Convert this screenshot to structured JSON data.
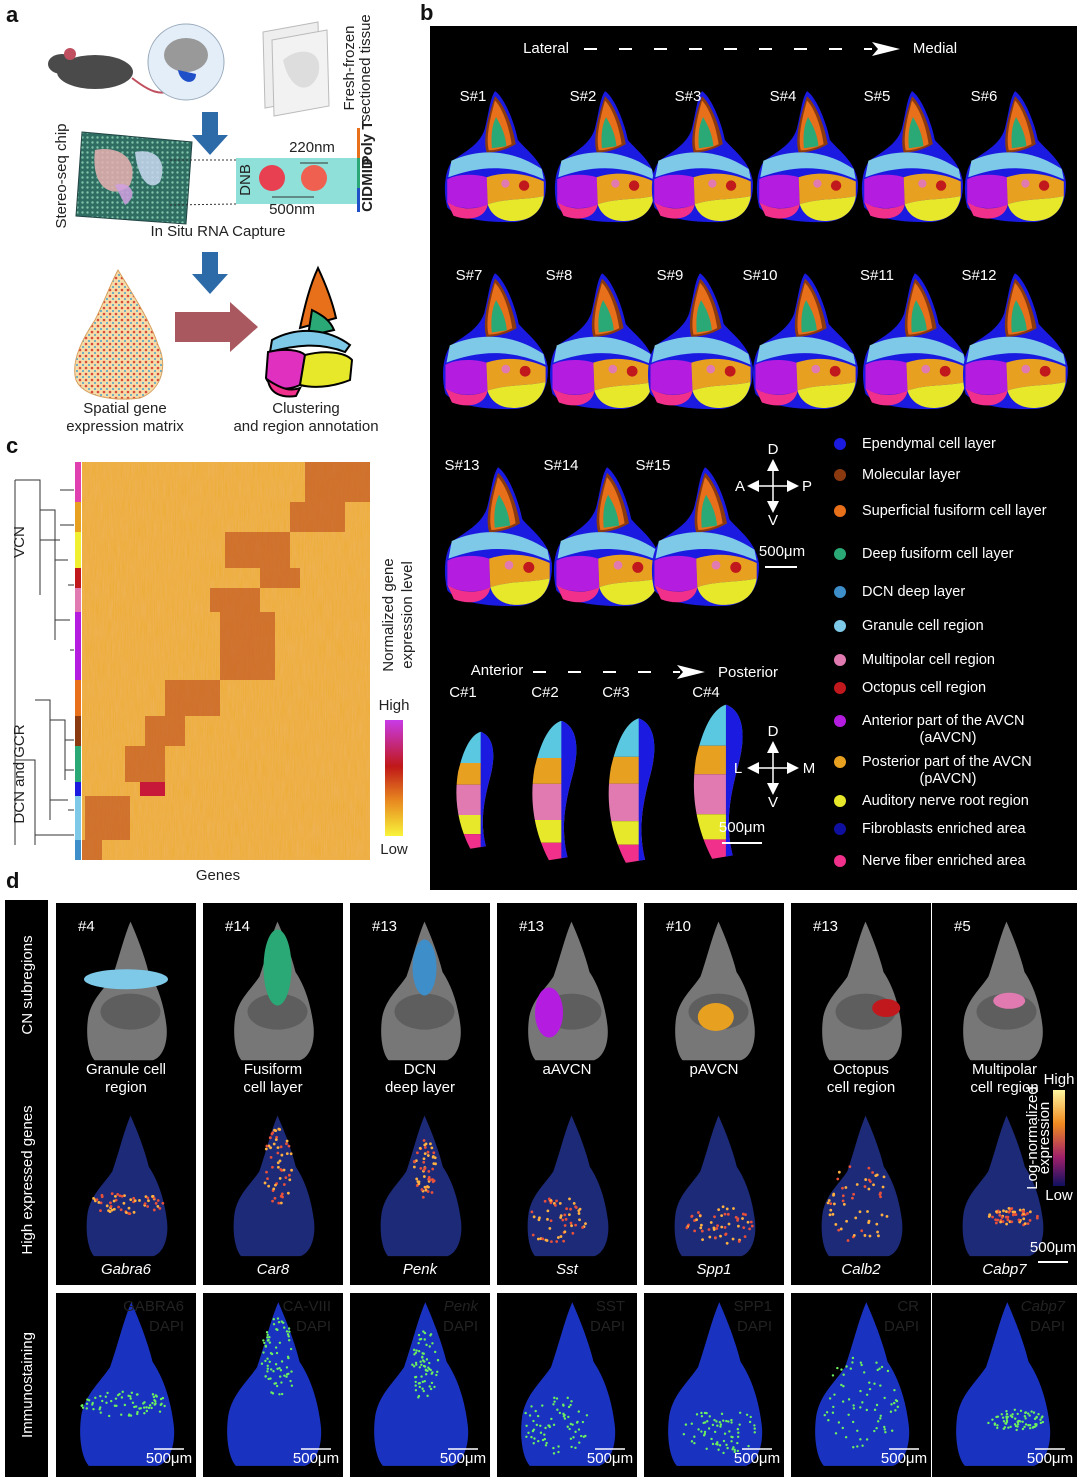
{
  "panel_a": {
    "label": "a",
    "tissue_label": [
      "Fresh-frozen",
      "sectioned tissue"
    ],
    "chip_label": "Stereo-seq chip",
    "dnb_label": "DNB",
    "dnb_size": "220nm",
    "dnb_spacing": "500nm",
    "probe_parts": [
      "Poly T",
      "MID",
      "CID"
    ],
    "capture_step": "In Situ RNA Capture",
    "matrix_label": [
      "Spatial gene",
      "expression matrix"
    ],
    "cluster_label": [
      "Clustering",
      "and region annotation"
    ]
  },
  "panel_b": {
    "label": "b",
    "sagittal_axis": {
      "start": "Lateral",
      "end": "Medial"
    },
    "sagittal_sections": [
      "S#1",
      "S#2",
      "S#3",
      "S#4",
      "S#5",
      "S#6",
      "S#7",
      "S#8",
      "S#9",
      "S#10",
      "S#11",
      "S#12",
      "S#13",
      "S#14",
      "S#15"
    ],
    "sagittal_compass": {
      "up": "D",
      "down": "V",
      "left": "A",
      "right": "P"
    },
    "sagittal_scale": "500μm",
    "coronal_axis": {
      "start": "Anterior",
      "end": "Posterior"
    },
    "coronal_sections": [
      "C#1",
      "C#2",
      "C#3",
      "C#4"
    ],
    "coronal_compass": {
      "up": "D",
      "down": "V",
      "left": "L",
      "right": "M"
    },
    "coronal_scale": "500μm",
    "legend": [
      {
        "lines": [
          "Ependymal cell layer"
        ],
        "color": "#1a1ae0"
      },
      {
        "lines": [
          "Molecular layer"
        ],
        "color": "#8b3a10"
      },
      {
        "lines": [
          "Superficial fusiform cell layer"
        ],
        "color": "#e8701a"
      },
      {
        "lines": [
          "Deep fusiform cell  layer"
        ],
        "color": "#2aa875"
      },
      {
        "lines": [
          "DCN deep layer"
        ],
        "color": "#3d8ec9"
      },
      {
        "lines": [
          "Granule cell region"
        ],
        "color": "#7ec8e8"
      },
      {
        "lines": [
          "Multipolar cell region"
        ],
        "color": "#e07ab0"
      },
      {
        "lines": [
          "Octopus cell region"
        ],
        "color": "#c0181c"
      },
      {
        "lines": [
          "Anterior part of the AVCN",
          "(aAVCN)"
        ],
        "color": "#b41ce0"
      },
      {
        "lines": [
          "Posterior part of the AVCN",
          "(pAVCN)"
        ],
        "color": "#e8a020"
      },
      {
        "lines": [
          "Auditory nerve root region"
        ],
        "color": "#e8e82a"
      },
      {
        "lines": [
          "Fibroblasts enriched area"
        ],
        "color": "#1010a0"
      },
      {
        "lines": [
          "Nerve fiber enriched area"
        ],
        "color": "#f0308a"
      }
    ]
  },
  "panel_c": {
    "label": "c",
    "groups": [
      "VCN",
      "DCN and GCR"
    ],
    "colorbar_title": [
      "Normalized gene",
      "expression level"
    ],
    "colorbar_high": "High",
    "colorbar_low": "Low",
    "x_label": "Genes"
  },
  "panel_d": {
    "label": "d",
    "rows": [
      "CN subregions",
      "High expressed genes",
      "Immunostaining"
    ],
    "colorbar_high": "High",
    "colorbar_low": "Low",
    "colorbar_title": [
      "Log-normalized",
      "expression"
    ],
    "scale": "500μm",
    "columns": [
      {
        "section": "#4",
        "region": [
          "Granule cell",
          "region"
        ],
        "region_color": "#7ec8e8",
        "gene": "Gabra6",
        "stain": "GABRA6",
        "stain_style": "normal",
        "counterstain": "DAPI",
        "scale": "500μm"
      },
      {
        "section": "#14",
        "region": [
          "Fusiform",
          "cell layer"
        ],
        "region_color": "#2aa875",
        "gene": "Car8",
        "stain": "CA-VIII",
        "stain_style": "normal",
        "counterstain": "DAPI",
        "scale": "500μm"
      },
      {
        "section": "#13",
        "region": [
          "DCN",
          "deep layer"
        ],
        "region_color": "#3d8ec9",
        "gene": "Penk",
        "stain": "Penk",
        "stain_style": "italic",
        "counterstain": "DAPI",
        "scale": "500μm"
      },
      {
        "section": "#13",
        "region": [
          "aAVCN"
        ],
        "region_color": "#b41ce0",
        "gene": "Sst",
        "stain": "SST",
        "stain_style": "normal",
        "counterstain": "DAPI",
        "scale": "500μm"
      },
      {
        "section": "#10",
        "region": [
          "pAVCN"
        ],
        "region_color": "#e8a020",
        "gene": "Spp1",
        "stain": "SPP1",
        "stain_style": "normal",
        "counterstain": "DAPI",
        "scale": "500μm"
      },
      {
        "section": "#13",
        "region": [
          "Octopus",
          "cell region"
        ],
        "region_color": "#c0181c",
        "gene": "Calb2",
        "stain": "CR",
        "stain_style": "normal",
        "counterstain": "DAPI",
        "scale": "500μm"
      },
      {
        "section": "#5",
        "region": [
          "Multipolar",
          "cell region"
        ],
        "region_color": "#e07ab0",
        "gene": "Cabp7",
        "stain": "Cabp7",
        "stain_style": "italic",
        "counterstain": "DAPI",
        "scale": "500μm"
      }
    ]
  }
}
